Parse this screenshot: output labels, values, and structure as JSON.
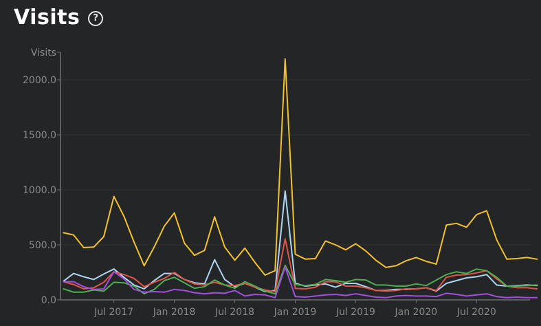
{
  "header": {
    "title": "Visits",
    "help_glyph": "?"
  },
  "colors": {
    "background": "#242527",
    "grid": "#333436",
    "axis": "#6f7072",
    "tick_label": "#8a8a8a"
  },
  "chart_data": {
    "type": "line",
    "ylabel": "Visits",
    "ylim": [
      0,
      2250
    ],
    "yticks": [
      0,
      500,
      1000,
      1500,
      2000
    ],
    "ytick_labels": [
      "0.0",
      "500.0",
      "1000.0",
      "1500.0",
      "2000.0"
    ],
    "xlim": [
      -0.3,
      46.3
    ],
    "xticks": [
      {
        "x": 5,
        "label": "Jul 2017"
      },
      {
        "x": 11,
        "label": "Jan 2018"
      },
      {
        "x": 17,
        "label": "Jul 2018"
      },
      {
        "x": 23,
        "label": "Jan 2019"
      },
      {
        "x": 29,
        "label": "Jul 2019"
      },
      {
        "x": 35,
        "label": "Jan 2020"
      },
      {
        "x": 41,
        "label": "Jul 2020"
      }
    ],
    "grid": true,
    "series": [
      {
        "color": "#f2c12e",
        "values": [
          610,
          590,
          475,
          480,
          575,
          940,
          760,
          525,
          310,
          480,
          670,
          790,
          515,
          405,
          450,
          755,
          480,
          360,
          470,
          340,
          225,
          265,
          2190,
          415,
          370,
          375,
          535,
          500,
          455,
          510,
          445,
          360,
          295,
          310,
          355,
          385,
          350,
          325,
          680,
          695,
          660,
          775,
          810,
          545,
          370,
          375,
          385,
          370
        ]
      },
      {
        "color": "#aed6f1",
        "values": [
          170,
          240,
          210,
          185,
          235,
          280,
          205,
          135,
          100,
          175,
          240,
          240,
          185,
          155,
          145,
          365,
          185,
          120,
          150,
          115,
          75,
          85,
          990,
          150,
          125,
          135,
          145,
          115,
          150,
          150,
          120,
          85,
          85,
          95,
          95,
          100,
          110,
          80,
          150,
          175,
          200,
          210,
          230,
          135,
          125,
          130,
          135,
          130
        ]
      },
      {
        "color": "#e05547",
        "values": [
          165,
          140,
          100,
          110,
          160,
          255,
          230,
          195,
          120,
          160,
          195,
          250,
          185,
          145,
          135,
          160,
          135,
          130,
          150,
          115,
          90,
          75,
          555,
          105,
          100,
          115,
          165,
          165,
          125,
          125,
          110,
          85,
          80,
          85,
          100,
          100,
          110,
          85,
          205,
          225,
          230,
          245,
          265,
          190,
          125,
          110,
          110,
          100
        ]
      },
      {
        "color": "#4caf50",
        "values": [
          100,
          70,
          70,
          90,
          80,
          160,
          155,
          125,
          55,
          95,
          175,
          205,
          155,
          105,
          120,
          180,
          135,
          105,
          165,
          125,
          80,
          55,
          315,
          140,
          130,
          140,
          185,
          175,
          160,
          185,
          180,
          135,
          135,
          125,
          125,
          145,
          130,
          180,
          230,
          255,
          240,
          280,
          265,
          205,
          125,
          125,
          130,
          135
        ]
      },
      {
        "color": "#a34fde",
        "values": [
          165,
          165,
          120,
          95,
          100,
          255,
          190,
          95,
          70,
          75,
          70,
          95,
          85,
          65,
          55,
          65,
          60,
          85,
          35,
          50,
          45,
          20,
          300,
          30,
          25,
          35,
          45,
          50,
          40,
          55,
          40,
          25,
          20,
          35,
          40,
          35,
          35,
          30,
          60,
          50,
          35,
          45,
          55,
          30,
          20,
          25,
          20,
          20
        ]
      }
    ]
  }
}
